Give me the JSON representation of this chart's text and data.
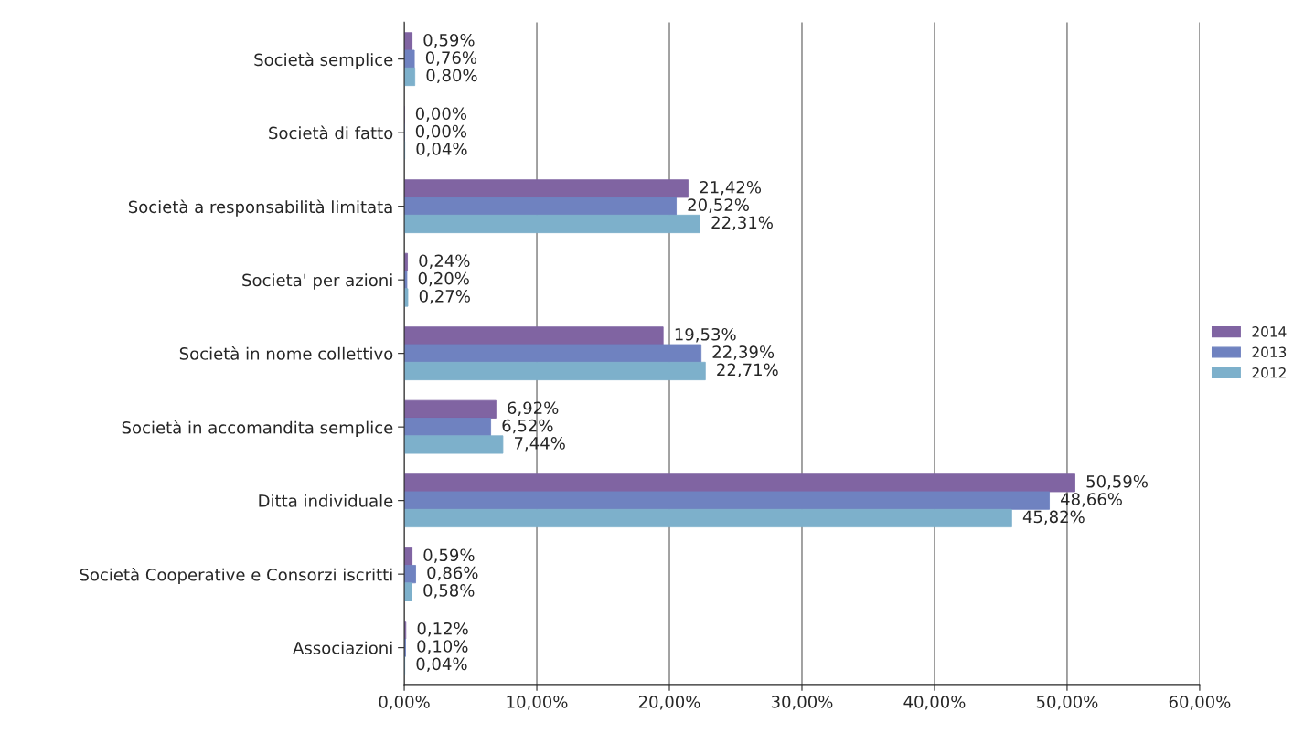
{
  "chart_data": {
    "type": "bar",
    "orientation": "horizontal",
    "categories": [
      "Società semplice",
      "Società di fatto",
      "Società a responsabilità limitata",
      "Societa' per azioni",
      "Società in nome collettivo",
      "Società in accomandita semplice",
      "Ditta individuale",
      "Società Cooperative e Consorzi iscritti",
      "Associazioni"
    ],
    "series": [
      {
        "name": "2014",
        "color": "#8064a2",
        "values": [
          0.59,
          0.0,
          21.42,
          0.24,
          19.53,
          6.92,
          50.59,
          0.59,
          0.12
        ],
        "value_labels": [
          "0,59%",
          "0,00%",
          "21,42%",
          "0,24%",
          "19,53%",
          "6,92%",
          "50,59%",
          "0,59%",
          "0,12%"
        ]
      },
      {
        "name": "2013",
        "color": "#6f82c0",
        "values": [
          0.76,
          0.0,
          20.52,
          0.2,
          22.39,
          6.52,
          48.66,
          0.86,
          0.1
        ],
        "value_labels": [
          "0,76%",
          "0,00%",
          "20,52%",
          "0,20%",
          "22,39%",
          "6,52%",
          "48,66%",
          "0,86%",
          "0,10%"
        ]
      },
      {
        "name": "2012",
        "color": "#7db0cb",
        "values": [
          0.8,
          0.04,
          22.31,
          0.27,
          22.71,
          7.44,
          45.82,
          0.58,
          0.04
        ],
        "value_labels": [
          "0,80%",
          "0,04%",
          "22,31%",
          "0,27%",
          "22,71%",
          "7,44%",
          "45,82%",
          "0,58%",
          "0,04%"
        ]
      }
    ],
    "xlim": [
      0,
      60
    ],
    "xticks": [
      {
        "value": 0,
        "label": "0,00%"
      },
      {
        "value": 10,
        "label": "10,00%"
      },
      {
        "value": 20,
        "label": "20,00%"
      },
      {
        "value": 30,
        "label": "30,00%"
      },
      {
        "value": 40,
        "label": "40,00%"
      },
      {
        "value": 50,
        "label": "50,00%"
      },
      {
        "value": 60,
        "label": "60,00%"
      }
    ],
    "grid": "x",
    "legend": "right"
  }
}
